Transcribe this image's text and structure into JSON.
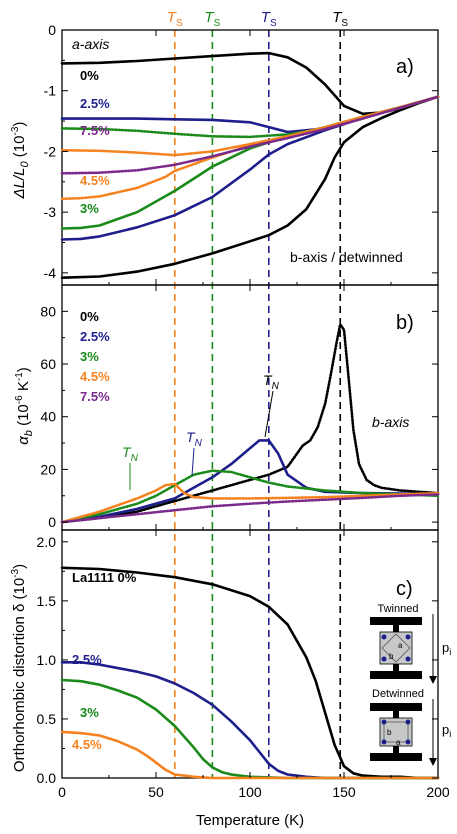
{
  "figure": {
    "top_labels": [
      {
        "text": "T",
        "sub": "S",
        "color": "#f5821f",
        "x": 60
      },
      {
        "text": "T",
        "sub": "S",
        "color": "#1a8a1a",
        "x": 80
      },
      {
        "text": "T",
        "sub": "S",
        "color": "#1e1e8c",
        "x": 110
      },
      {
        "text": "T",
        "sub": "S",
        "color": "#000000",
        "x": 148
      }
    ],
    "x_axis": {
      "label": "Temperature (K)",
      "ticks": [
        "0",
        "50",
        "100",
        "150",
        "200"
      ],
      "range": [
        0,
        200
      ]
    }
  },
  "chart_data": [
    {
      "type": "line",
      "panel": "a)",
      "ylabel": "ΔL/L0 (10^-3)",
      "ylabel_main": "ΔL/L",
      "ylabel_sub": "0",
      "ylabel_unit": " (10",
      "ylabel_exp": "-3",
      "ylabel_close": ")",
      "ylim": [
        -4.2,
        0
      ],
      "yticks": [
        "0",
        "-1",
        "-2",
        "-3",
        "-4"
      ],
      "annotations": {
        "a_axis": "a-axis",
        "b_axis": "b-axis / detwinned"
      },
      "legend_labels": [
        {
          "text": "0%",
          "color": "#000000"
        },
        {
          "text": "2.5%",
          "color": "#1e1e8c"
        },
        {
          "text": "7.5%",
          "color": "#7b2a8c"
        },
        {
          "text": "4.5%",
          "color": "#f5821f"
        },
        {
          "text": "3%",
          "color": "#1a8a1a"
        }
      ],
      "series": [
        {
          "name": "0% a-axis",
          "color": "#000000",
          "x": [
            0,
            20,
            40,
            60,
            80,
            100,
            110,
            120,
            130,
            140,
            150,
            160,
            170,
            180,
            190,
            200
          ],
          "y": [
            -0.55,
            -0.54,
            -0.51,
            -0.47,
            -0.43,
            -0.39,
            -0.38,
            -0.45,
            -0.62,
            -0.9,
            -1.25,
            -1.38,
            -1.36,
            -1.29,
            -1.2,
            -1.1
          ]
        },
        {
          "name": "0% b-axis",
          "color": "#000000",
          "x": [
            0,
            20,
            40,
            60,
            80,
            100,
            110,
            120,
            130,
            140,
            145,
            150,
            160,
            170,
            180,
            190,
            200
          ],
          "y": [
            -4.08,
            -4.06,
            -3.98,
            -3.85,
            -3.68,
            -3.48,
            -3.38,
            -3.22,
            -2.95,
            -2.45,
            -2.1,
            -1.85,
            -1.6,
            -1.45,
            -1.32,
            -1.2,
            -1.1
          ]
        },
        {
          "name": "2.5% a",
          "color": "#1e1e8c",
          "x": [
            0,
            20,
            40,
            60,
            80,
            100,
            110,
            120,
            140,
            160,
            180,
            200
          ],
          "y": [
            -1.46,
            -1.46,
            -1.46,
            -1.47,
            -1.48,
            -1.52,
            -1.6,
            -1.68,
            -1.62,
            -1.45,
            -1.28,
            -1.1
          ]
        },
        {
          "name": "2.5% b",
          "color": "#1e1e8c",
          "x": [
            0,
            10,
            20,
            40,
            60,
            80,
            100,
            110,
            120,
            140,
            160,
            180,
            200
          ],
          "y": [
            -3.45,
            -3.44,
            -3.4,
            -3.25,
            -3.05,
            -2.75,
            -2.3,
            -2.05,
            -1.88,
            -1.65,
            -1.45,
            -1.28,
            -1.1
          ]
        },
        {
          "name": "3% a",
          "color": "#1a8a1a",
          "x": [
            0,
            20,
            40,
            60,
            80,
            100,
            120,
            140,
            160,
            180,
            200
          ],
          "y": [
            -1.62,
            -1.63,
            -1.66,
            -1.71,
            -1.75,
            -1.76,
            -1.72,
            -1.62,
            -1.45,
            -1.28,
            -1.1
          ]
        },
        {
          "name": "3% b",
          "color": "#1a8a1a",
          "x": [
            0,
            10,
            20,
            40,
            60,
            80,
            100,
            120,
            140,
            160,
            180,
            200
          ],
          "y": [
            -3.27,
            -3.26,
            -3.22,
            -3.0,
            -2.65,
            -2.25,
            -1.95,
            -1.75,
            -1.6,
            -1.43,
            -1.27,
            -1.1
          ]
        },
        {
          "name": "4.5% a",
          "color": "#f5821f",
          "x": [
            0,
            20,
            40,
            60,
            80,
            100,
            120,
            140,
            160,
            180,
            200
          ],
          "y": [
            -1.98,
            -1.99,
            -2.02,
            -2.06,
            -2.0,
            -1.88,
            -1.75,
            -1.62,
            -1.45,
            -1.28,
            -1.1
          ]
        },
        {
          "name": "4.5% b",
          "color": "#f5821f",
          "x": [
            0,
            10,
            20,
            40,
            55,
            60,
            80,
            100,
            120,
            140,
            160,
            180,
            200
          ],
          "y": [
            -2.78,
            -2.77,
            -2.74,
            -2.6,
            -2.42,
            -2.32,
            -2.1,
            -1.9,
            -1.75,
            -1.6,
            -1.43,
            -1.27,
            -1.1
          ]
        },
        {
          "name": "7.5%",
          "color": "#7b2a8c",
          "x": [
            0,
            20,
            40,
            60,
            80,
            100,
            120,
            140,
            160,
            180,
            200
          ],
          "y": [
            -2.36,
            -2.35,
            -2.31,
            -2.22,
            -2.08,
            -1.92,
            -1.78,
            -1.63,
            -1.46,
            -1.28,
            -1.1
          ]
        }
      ]
    },
    {
      "type": "line",
      "panel": "b)",
      "ylabel": "αb (10^-6 K^-1)",
      "ylabel_main": "α",
      "ylabel_sub": "b",
      "ylabel_unit": " (10",
      "ylabel_exp": "-6",
      "ylabel_unit2": " K",
      "ylabel_exp2": "-1",
      "ylabel_close": ")",
      "ylim": [
        -3,
        90
      ],
      "yticks": [
        "0",
        "20",
        "40",
        "60",
        "80"
      ],
      "annotations": {
        "b_axis": "b-axis",
        "tn": "T",
        "tn_sub": "N"
      },
      "legend_labels": [
        {
          "text": "0%",
          "color": "#000000"
        },
        {
          "text": "2.5%",
          "color": "#1e1e8c"
        },
        {
          "text": "3%",
          "color": "#1a8a1a"
        },
        {
          "text": "4.5%",
          "color": "#f5821f"
        },
        {
          "text": "7.5%",
          "color": "#7b2a8c"
        }
      ],
      "series": [
        {
          "name": "0%",
          "color": "#000000",
          "x": [
            0,
            20,
            40,
            60,
            80,
            100,
            110,
            120,
            125,
            128,
            132,
            136,
            140,
            143,
            146,
            148,
            150,
            152,
            155,
            158,
            162,
            166,
            170,
            180,
            190,
            200
          ],
          "y": [
            0,
            1.5,
            4,
            8,
            12,
            16,
            18,
            21,
            26,
            29,
            31,
            36,
            45,
            56,
            68,
            75,
            73,
            58,
            35,
            22,
            16,
            14,
            13,
            12,
            11.5,
            11
          ]
        },
        {
          "name": "2.5%",
          "color": "#1e1e8c",
          "x": [
            0,
            20,
            40,
            60,
            70,
            80,
            90,
            100,
            105,
            110,
            115,
            120,
            130,
            140,
            160,
            180,
            200
          ],
          "y": [
            0,
            2,
            5,
            9,
            13,
            17,
            22,
            28,
            31,
            31,
            26,
            18,
            13,
            11.5,
            11,
            10.8,
            10.5
          ]
        },
        {
          "name": "3%",
          "color": "#1a8a1a",
          "x": [
            0,
            20,
            40,
            50,
            60,
            70,
            80,
            90,
            100,
            110,
            120,
            140,
            160,
            180,
            200
          ],
          "y": [
            0,
            3,
            7,
            10,
            14,
            18,
            19.5,
            19,
            17,
            15,
            13.5,
            12,
            11,
            10.5,
            10
          ]
        },
        {
          "name": "4.5%",
          "color": "#f5821f",
          "x": [
            0,
            20,
            40,
            50,
            55,
            60,
            65,
            70,
            80,
            100,
            120,
            140,
            160,
            180,
            200
          ],
          "y": [
            0,
            4,
            9,
            12,
            14,
            14.5,
            11,
            9.5,
            9,
            9,
            9.2,
            9.5,
            10,
            10.5,
            11
          ]
        },
        {
          "name": "7.5%",
          "color": "#7b2a8c",
          "x": [
            0,
            20,
            40,
            60,
            80,
            100,
            120,
            140,
            160,
            180,
            200
          ],
          "y": [
            0,
            1.5,
            3,
            4.5,
            6,
            7,
            7.8,
            8.5,
            9.2,
            10,
            10.5
          ]
        }
      ]
    },
    {
      "type": "line",
      "panel": "c)",
      "ylabel": "Orthorhombic distortion δ (10^-3)",
      "ylabel_main": "Orthorhombic distortion δ (10",
      "ylabel_exp": "-3",
      "ylabel_close": ")",
      "ylim": [
        0,
        2.1
      ],
      "yticks": [
        "0.0",
        "0.5",
        "1.0",
        "1.5",
        "2.0"
      ],
      "legend_labels": [
        {
          "text": "La1111 0%",
          "color": "#000000"
        },
        {
          "text": "2.5%",
          "color": "#1e1e8c"
        },
        {
          "text": "3%",
          "color": "#1a8a1a"
        },
        {
          "text": "4.5%",
          "color": "#f5821f"
        }
      ],
      "inset": {
        "twinned": "Twinned",
        "detwinned": "Detwinned",
        "p": "p",
        "p_sub": "i",
        "a": "a",
        "b": "b"
      },
      "series": [
        {
          "name": "La1111 0%",
          "color": "#000000",
          "x": [
            0,
            20,
            40,
            60,
            80,
            100,
            110,
            120,
            130,
            135,
            140,
            145,
            150,
            155,
            160,
            170,
            180,
            190,
            200
          ],
          "y": [
            1.78,
            1.77,
            1.74,
            1.7,
            1.64,
            1.54,
            1.45,
            1.3,
            1.02,
            0.82,
            0.55,
            0.28,
            0.1,
            0.04,
            0.02,
            0.01,
            0.01,
            0,
            0
          ]
        },
        {
          "name": "2.5%",
          "color": "#1e1e8c",
          "x": [
            0,
            10,
            20,
            30,
            40,
            50,
            60,
            70,
            80,
            90,
            100,
            105,
            110,
            115,
            120,
            130,
            140,
            150,
            200
          ],
          "y": [
            0.98,
            0.98,
            0.96,
            0.93,
            0.9,
            0.86,
            0.8,
            0.72,
            0.62,
            0.48,
            0.32,
            0.22,
            0.12,
            0.06,
            0.03,
            0.01,
            0,
            0,
            0
          ]
        },
        {
          "name": "3%",
          "color": "#1a8a1a",
          "x": [
            0,
            10,
            20,
            30,
            40,
            50,
            60,
            70,
            75,
            80,
            85,
            90,
            100,
            120,
            150,
            200
          ],
          "y": [
            0.83,
            0.82,
            0.79,
            0.74,
            0.68,
            0.58,
            0.44,
            0.26,
            0.16,
            0.09,
            0.05,
            0.03,
            0.01,
            0,
            0,
            0
          ]
        },
        {
          "name": "4.5%",
          "color": "#f5821f",
          "x": [
            0,
            10,
            20,
            30,
            40,
            45,
            50,
            55,
            60,
            65,
            70,
            80,
            100,
            150,
            200
          ],
          "y": [
            0.39,
            0.38,
            0.36,
            0.31,
            0.24,
            0.19,
            0.13,
            0.07,
            0.03,
            0.02,
            0.01,
            0,
            0,
            0,
            0
          ]
        }
      ]
    }
  ]
}
